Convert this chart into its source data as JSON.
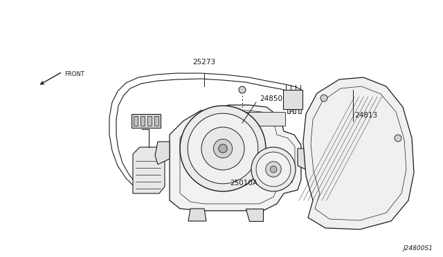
{
  "background_color": "#ffffff",
  "line_color": "#1a1a1a",
  "text_color": "#1a1a1a",
  "labels": {
    "front_arrow": "FRONT",
    "part_25273": "25273",
    "part_24850": "24850",
    "part_24813": "24813",
    "part_25010A": "25010A",
    "diagram_id": "J24800S1"
  },
  "figsize": [
    6.4,
    3.72
  ],
  "dpi": 100
}
